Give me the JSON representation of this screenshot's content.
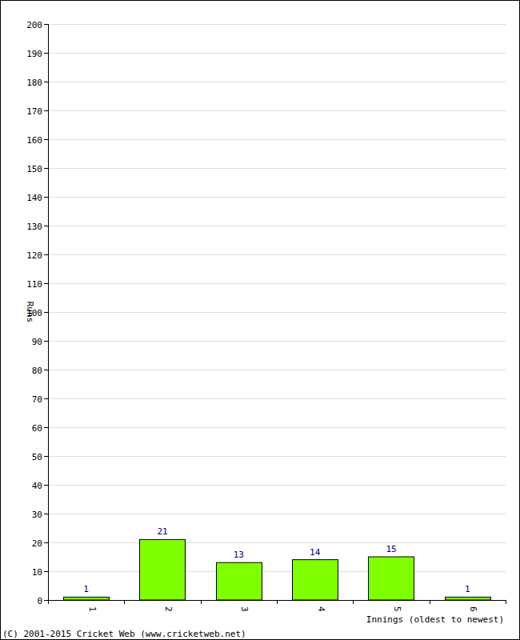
{
  "chart_data": {
    "type": "bar",
    "categories": [
      "1",
      "2",
      "3",
      "4",
      "5",
      "6"
    ],
    "values": [
      1,
      21,
      13,
      14,
      15,
      1
    ],
    "color": "#80ff00",
    "ylim": [
      0,
      200
    ],
    "yticks": [
      0,
      10,
      20,
      30,
      40,
      50,
      60,
      70,
      80,
      90,
      100,
      110,
      120,
      130,
      140,
      150,
      160,
      170,
      180,
      190,
      200
    ],
    "grid": true,
    "data_labels": true,
    "y_label": "Runs",
    "x_label": "Innings (oldest to newest)",
    "footer": "(C) 2001-2015 Cricket Web (www.cricketweb.net)"
  }
}
